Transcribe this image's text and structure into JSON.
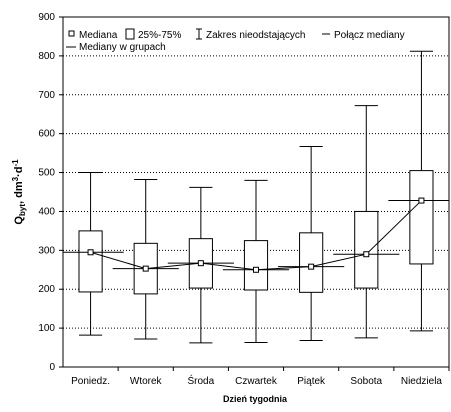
{
  "chart_data": {
    "type": "box",
    "x_label": "Dzień tygodnia",
    "y_label_parts": [
      "Q",
      "byt",
      ", dm",
      "3",
      "·d",
      "-1"
    ],
    "categories": [
      "Poniedz.",
      "Wtorek",
      "Środa",
      "Czwartek",
      "Piątek",
      "Sobota",
      "Niedziela"
    ],
    "min": [
      82,
      72,
      62,
      63,
      68,
      75,
      93
    ],
    "q1": [
      193,
      188,
      203,
      198,
      192,
      203,
      265
    ],
    "median": [
      295,
      253,
      267,
      250,
      258,
      290,
      428
    ],
    "q3": [
      350,
      318,
      330,
      325,
      345,
      400,
      505
    ],
    "max": [
      500,
      482,
      462,
      480,
      567,
      672,
      812
    ],
    "legend": [
      "Mediana",
      "25%-75%",
      "Zakres nieodstających",
      "Połącz mediany",
      "Mediany w grupach"
    ],
    "ylim": [
      0,
      900
    ],
    "yticks": [
      0,
      100,
      200,
      300,
      400,
      500,
      600,
      700,
      800,
      900
    ],
    "grid": true
  }
}
